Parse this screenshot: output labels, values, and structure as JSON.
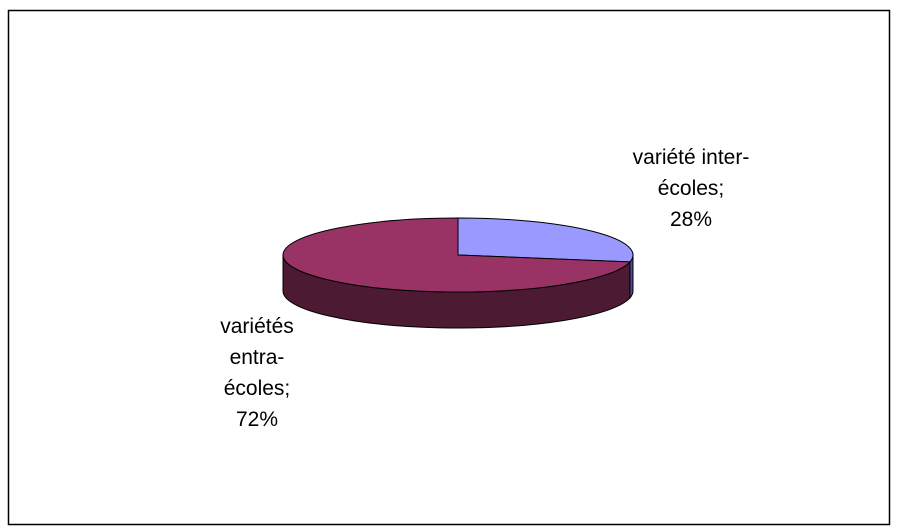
{
  "chart_data": {
    "type": "pie3d",
    "categories": [
      "variété inter-écoles",
      "variétés entra-écoles"
    ],
    "label_separator": ";",
    "values": [
      28,
      72
    ],
    "value_labels": [
      "28%",
      "72%"
    ],
    "colors": [
      "#9999ff",
      "#993366"
    ],
    "side_colors": [
      "#4d4d99",
      "#4d1a33"
    ]
  }
}
